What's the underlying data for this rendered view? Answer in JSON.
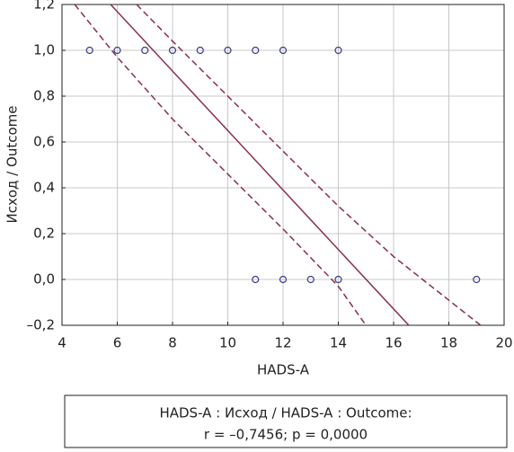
{
  "chart_data": {
    "type": "scatter",
    "xlabel": "HADS-A",
    "ylabel": "Исход / Outcome",
    "xlim": [
      4,
      20
    ],
    "xticks": [
      4,
      6,
      8,
      10,
      12,
      14,
      16,
      18,
      20
    ],
    "ylim": [
      -0.2,
      1.2
    ],
    "yticks": [
      {
        "value": -0.2,
        "label": "–0,2"
      },
      {
        "value": 0,
        "label": "0,0"
      },
      {
        "value": 0.2,
        "label": "0,2"
      },
      {
        "value": 0.4,
        "label": "0,4"
      },
      {
        "value": 0.6,
        "label": "0,6"
      },
      {
        "value": 0.8,
        "label": "0,8"
      },
      {
        "value": 1,
        "label": "1,0"
      },
      {
        "value": 1.2,
        "label": "1,2"
      }
    ],
    "grid": true,
    "series": [
      {
        "color": "#3a3a8c",
        "x": [
          5,
          6,
          7,
          8,
          9,
          10,
          11,
          12,
          14,
          11,
          12,
          13,
          14,
          19
        ],
        "values": [
          1,
          1,
          1,
          1,
          1,
          1,
          1,
          1,
          1,
          0,
          0,
          0,
          0,
          0
        ]
      },
      {
        "type": "line",
        "color": "#8b2d4e",
        "x": [
          5.76,
          16.55
        ],
        "values": [
          1.2,
          -0.2
        ]
      },
      {
        "type": "line",
        "style": "dashed",
        "color": "#8b2d4e",
        "x": [
          6.7,
          8,
          10,
          12,
          14,
          16,
          19.15
        ],
        "values": [
          1.2,
          1.04,
          0.8,
          0.56,
          0.32,
          0.1,
          -0.2
        ]
      },
      {
        "type": "line",
        "style": "dashed",
        "color": "#8b2d4e",
        "x": [
          4.46,
          6,
          8,
          10,
          12,
          14,
          15
        ],
        "values": [
          1.2,
          0.97,
          0.7,
          0.46,
          0.22,
          -0.03,
          -0.2
        ]
      }
    ],
    "annotation": [
      "HADS-A : Исход / HADS-A : Outcome:",
      "r = –0,7456; p = 0,0000"
    ]
  }
}
